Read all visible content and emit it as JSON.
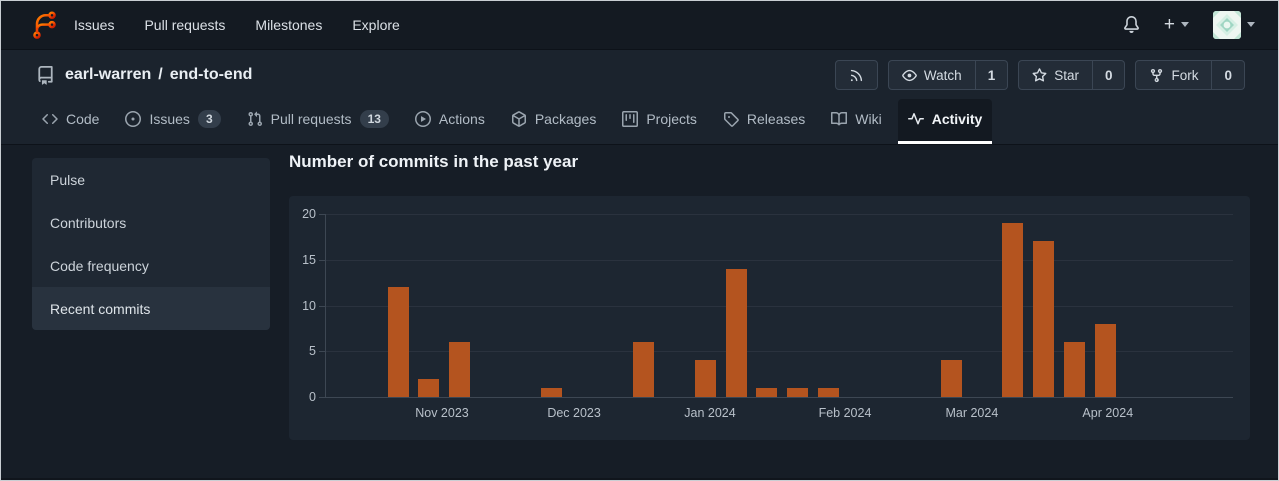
{
  "navbar": {
    "links": [
      "Issues",
      "Pull requests",
      "Milestones",
      "Explore"
    ],
    "plus_label": "+"
  },
  "header": {
    "owner": "earl-warren",
    "separator": "/",
    "repo": "end-to-end",
    "actions": {
      "watch": {
        "label": "Watch",
        "count": "1"
      },
      "star": {
        "label": "Star",
        "count": "0"
      },
      "fork": {
        "label": "Fork",
        "count": "0"
      }
    }
  },
  "tabs": {
    "items": [
      {
        "label": "Code"
      },
      {
        "label": "Issues",
        "badge": "3"
      },
      {
        "label": "Pull requests",
        "badge": "13"
      },
      {
        "label": "Actions"
      },
      {
        "label": "Packages"
      },
      {
        "label": "Projects"
      },
      {
        "label": "Releases"
      },
      {
        "label": "Wiki"
      },
      {
        "label": "Activity",
        "active": true
      }
    ]
  },
  "sidebar": {
    "items": [
      {
        "label": "Pulse"
      },
      {
        "label": "Contributors"
      },
      {
        "label": "Code frequency"
      },
      {
        "label": "Recent commits",
        "active": true
      }
    ]
  },
  "main": {
    "chart_title": "Number of commits in the past year"
  },
  "colors": {
    "bar_orange": "#b4541f",
    "brand_orange": "#ff6b00",
    "brand_red": "#d40000",
    "active_tab_underline": "#ffffff"
  },
  "chart_data": {
    "type": "bar",
    "title": "Number of commits in the past year",
    "x_unit": "week",
    "ylabel": "",
    "xlabel": "",
    "ylim": [
      0,
      20
    ],
    "y_ticks": [
      0,
      5,
      10,
      15,
      20
    ],
    "grid": true,
    "legend": "none",
    "bar_color": "#b4541f",
    "x_ticks": [
      {
        "label": "Nov 2023",
        "week": 1.43
      },
      {
        "label": "Dec 2023",
        "week": 5.73
      },
      {
        "label": "Jan 2024",
        "week": 10.15
      },
      {
        "label": "Feb 2024",
        "week": 14.54
      },
      {
        "label": "Mar 2024",
        "week": 18.67
      },
      {
        "label": "Apr 2024",
        "week": 23.09
      }
    ],
    "bars": [
      {
        "week": 0,
        "value": 12
      },
      {
        "week": 1,
        "value": 2
      },
      {
        "week": 2,
        "value": 6
      },
      {
        "week": 5,
        "value": 1
      },
      {
        "week": 8,
        "value": 6
      },
      {
        "week": 10,
        "value": 4
      },
      {
        "week": 11,
        "value": 14
      },
      {
        "week": 12,
        "value": 1
      },
      {
        "week": 13,
        "value": 1
      },
      {
        "week": 14,
        "value": 1
      },
      {
        "week": 18,
        "value": 4
      },
      {
        "week": 20,
        "value": 19
      },
      {
        "week": 21,
        "value": 17
      },
      {
        "week": 22,
        "value": 6
      },
      {
        "week": 23,
        "value": 8
      }
    ]
  }
}
